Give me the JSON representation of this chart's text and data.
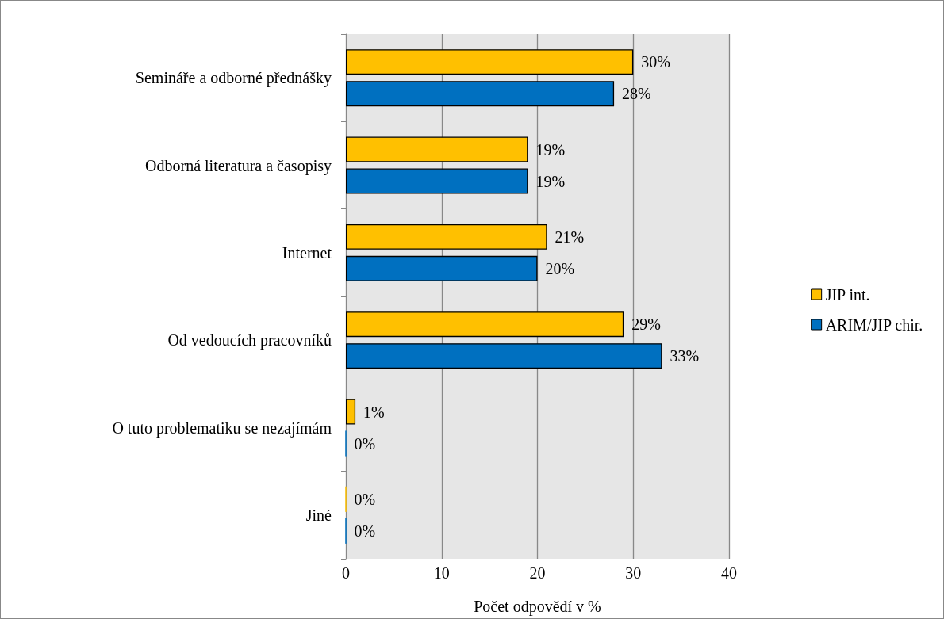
{
  "chart_data": {
    "type": "bar",
    "orientation": "horizontal",
    "xlabel": "Počet odpovědí v %",
    "categories": [
      "Semináře a odborné přednášky",
      "Odborná literatura a časopisy",
      "Internet",
      "Od vedoucích pracovníků",
      "O tuto problematiku se nezajímám",
      "Jiné"
    ],
    "series": [
      {
        "name": "JIP int.",
        "color": "#ffc000",
        "values": [
          30,
          19,
          21,
          29,
          1,
          0
        ],
        "value_labels": [
          "30%",
          "19%",
          "21%",
          "29%",
          "1%",
          "0%"
        ]
      },
      {
        "name": "ARIM/JIP chir.",
        "color": "#0070c0",
        "values": [
          28,
          19,
          20,
          33,
          0,
          0
        ],
        "value_labels": [
          "28%",
          "19%",
          "20%",
          "33%",
          "0%",
          "0%"
        ]
      }
    ],
    "xlim": [
      0,
      40
    ],
    "xticks": [
      0,
      10,
      20,
      30,
      40
    ],
    "grid": "x",
    "legend": "right"
  }
}
